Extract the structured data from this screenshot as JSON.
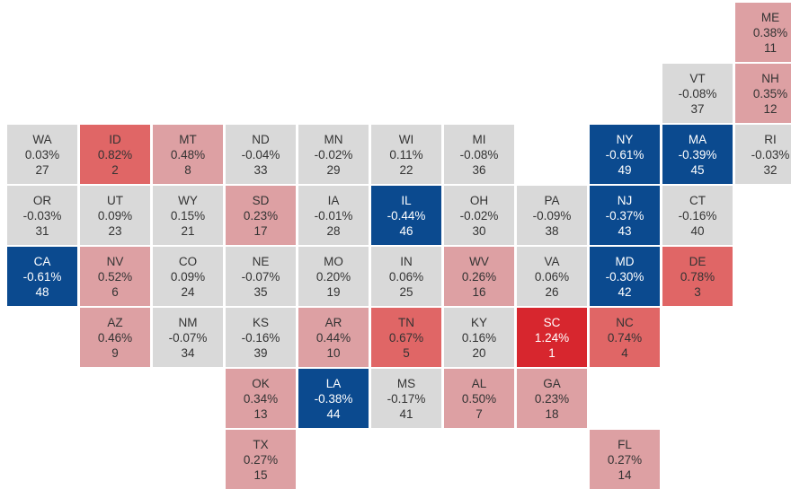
{
  "tiles": [
    {
      "state": "ME",
      "change": "0.38%",
      "rank": 11,
      "color": "#dda0a3"
    },
    {
      "state": "VT",
      "change": "-0.08%",
      "rank": 37,
      "color": "#d9d9d9"
    },
    {
      "state": "NH",
      "change": "0.35%",
      "rank": 12,
      "color": "#dda0a3"
    },
    {
      "state": "WA",
      "change": "0.03%",
      "rank": 27,
      "color": "#d9d9d9"
    },
    {
      "state": "ID",
      "change": "0.82%",
      "rank": 2,
      "color": "#e06666"
    },
    {
      "state": "MT",
      "change": "0.48%",
      "rank": 8,
      "color": "#dda0a3"
    },
    {
      "state": "ND",
      "change": "-0.04%",
      "rank": 33,
      "color": "#d9d9d9"
    },
    {
      "state": "MN",
      "change": "-0.02%",
      "rank": 29,
      "color": "#d9d9d9"
    },
    {
      "state": "WI",
      "change": "0.11%",
      "rank": 22,
      "color": "#d9d9d9"
    },
    {
      "state": "MI",
      "change": "-0.08%",
      "rank": 36,
      "color": "#d9d9d9"
    },
    {
      "state": "NY",
      "change": "-0.61%",
      "rank": 49,
      "color": "#0b4a8f"
    },
    {
      "state": "MA",
      "change": "-0.39%",
      "rank": 45,
      "color": "#0b4a8f"
    },
    {
      "state": "RI",
      "change": "-0.03%",
      "rank": 32,
      "color": "#d9d9d9"
    },
    {
      "state": "OR",
      "change": "-0.03%",
      "rank": 31,
      "color": "#d9d9d9"
    },
    {
      "state": "UT",
      "change": "0.09%",
      "rank": 23,
      "color": "#d9d9d9"
    },
    {
      "state": "WY",
      "change": "0.15%",
      "rank": 21,
      "color": "#d9d9d9"
    },
    {
      "state": "SD",
      "change": "0.23%",
      "rank": 17,
      "color": "#dda0a3"
    },
    {
      "state": "IA",
      "change": "-0.01%",
      "rank": 28,
      "color": "#d9d9d9"
    },
    {
      "state": "IL",
      "change": "-0.44%",
      "rank": 46,
      "color": "#0b4a8f"
    },
    {
      "state": "OH",
      "change": "-0.02%",
      "rank": 30,
      "color": "#d9d9d9"
    },
    {
      "state": "PA",
      "change": "-0.09%",
      "rank": 38,
      "color": "#d9d9d9"
    },
    {
      "state": "NJ",
      "change": "-0.37%",
      "rank": 43,
      "color": "#0b4a8f"
    },
    {
      "state": "CT",
      "change": "-0.16%",
      "rank": 40,
      "color": "#d9d9d9"
    },
    {
      "state": "CA",
      "change": "-0.61%",
      "rank": 48,
      "color": "#0b4a8f"
    },
    {
      "state": "NV",
      "change": "0.52%",
      "rank": 6,
      "color": "#dda0a3"
    },
    {
      "state": "CO",
      "change": "0.09%",
      "rank": 24,
      "color": "#d9d9d9"
    },
    {
      "state": "NE",
      "change": "-0.07%",
      "rank": 35,
      "color": "#d9d9d9"
    },
    {
      "state": "MO",
      "change": "0.20%",
      "rank": 19,
      "color": "#d9d9d9"
    },
    {
      "state": "IN",
      "change": "0.06%",
      "rank": 25,
      "color": "#d9d9d9"
    },
    {
      "state": "WV",
      "change": "0.26%",
      "rank": 16,
      "color": "#dda0a3"
    },
    {
      "state": "VA",
      "change": "0.06%",
      "rank": 26,
      "color": "#d9d9d9"
    },
    {
      "state": "MD",
      "change": "-0.30%",
      "rank": 42,
      "color": "#0b4a8f"
    },
    {
      "state": "DE",
      "change": "0.78%",
      "rank": 3,
      "color": "#e06666"
    },
    {
      "state": "AZ",
      "change": "0.46%",
      "rank": 9,
      "color": "#dda0a3"
    },
    {
      "state": "NM",
      "change": "-0.07%",
      "rank": 34,
      "color": "#d9d9d9"
    },
    {
      "state": "KS",
      "change": "-0.16%",
      "rank": 39,
      "color": "#d9d9d9"
    },
    {
      "state": "AR",
      "change": "0.44%",
      "rank": 10,
      "color": "#dda0a3"
    },
    {
      "state": "TN",
      "change": "0.67%",
      "rank": 5,
      "color": "#e06666"
    },
    {
      "state": "KY",
      "change": "0.16%",
      "rank": 20,
      "color": "#d9d9d9"
    },
    {
      "state": "SC",
      "change": "1.24%",
      "rank": 1,
      "color": "#d7262e"
    },
    {
      "state": "NC",
      "change": "0.74%",
      "rank": 4,
      "color": "#e06666"
    },
    {
      "state": "OK",
      "change": "0.34%",
      "rank": 13,
      "color": "#dda0a3"
    },
    {
      "state": "LA",
      "change": "-0.38%",
      "rank": 44,
      "color": "#0b4a8f"
    },
    {
      "state": "MS",
      "change": "-0.17%",
      "rank": 41,
      "color": "#d9d9d9"
    },
    {
      "state": "AL",
      "change": "0.50%",
      "rank": 7,
      "color": "#dda0a3"
    },
    {
      "state": "GA",
      "change": "0.23%",
      "rank": 18,
      "color": "#dda0a3"
    },
    {
      "state": "TX",
      "change": "0.27%",
      "rank": 15,
      "color": "#dda0a3"
    },
    {
      "state": "FL",
      "change": "0.27%",
      "rank": 14,
      "color": "#dda0a3"
    }
  ]
}
